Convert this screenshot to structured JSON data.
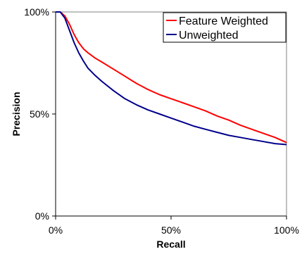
{
  "chart_data": {
    "type": "line",
    "title": "",
    "xlabel": "Recall",
    "ylabel": "Precision",
    "xlim": [
      0,
      1
    ],
    "ylim": [
      0,
      1
    ],
    "x_ticks": [
      {
        "value": 0,
        "label": "0%"
      },
      {
        "value": 0.5,
        "label": "50%"
      },
      {
        "value": 1,
        "label": "100%"
      }
    ],
    "y_ticks": [
      {
        "value": 0,
        "label": "0%"
      },
      {
        "value": 0.5,
        "label": "50%"
      },
      {
        "value": 1,
        "label": "100%"
      }
    ],
    "grid": false,
    "legend_position": "top-right",
    "series": [
      {
        "name": "Feature Weighted",
        "color": "#ff0000",
        "x": [
          0.0,
          0.02,
          0.04,
          0.06,
          0.08,
          0.1,
          0.12,
          0.14,
          0.17,
          0.2,
          0.25,
          0.3,
          0.35,
          0.4,
          0.45,
          0.5,
          0.55,
          0.6,
          0.65,
          0.7,
          0.75,
          0.8,
          0.85,
          0.9,
          0.95,
          1.0
        ],
        "values": [
          1.0,
          1.0,
          0.98,
          0.94,
          0.89,
          0.85,
          0.82,
          0.8,
          0.775,
          0.755,
          0.72,
          0.685,
          0.65,
          0.62,
          0.595,
          0.575,
          0.555,
          0.535,
          0.515,
          0.49,
          0.47,
          0.445,
          0.425,
          0.405,
          0.385,
          0.36
        ]
      },
      {
        "name": "Unweighted",
        "color": "#00008b",
        "x": [
          0.0,
          0.02,
          0.04,
          0.06,
          0.08,
          0.1,
          0.12,
          0.14,
          0.17,
          0.2,
          0.25,
          0.3,
          0.35,
          0.4,
          0.45,
          0.5,
          0.55,
          0.6,
          0.65,
          0.7,
          0.75,
          0.8,
          0.85,
          0.9,
          0.95,
          1.0
        ],
        "values": [
          1.0,
          1.0,
          0.97,
          0.91,
          0.85,
          0.8,
          0.76,
          0.725,
          0.69,
          0.66,
          0.615,
          0.575,
          0.545,
          0.52,
          0.5,
          0.48,
          0.46,
          0.44,
          0.425,
          0.41,
          0.395,
          0.385,
          0.375,
          0.365,
          0.355,
          0.35
        ]
      }
    ]
  }
}
